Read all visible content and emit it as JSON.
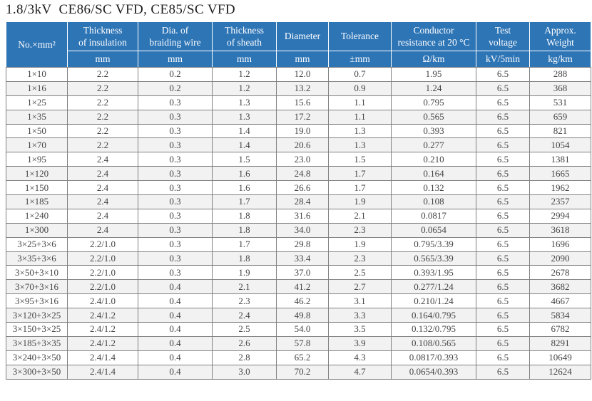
{
  "page": {
    "title": "1.8/3kV  CE86/SC VFD, CE85/SC VFD"
  },
  "colors": {
    "header_bg": "#2e75b6",
    "header_text": "#ffffff",
    "stripe_bg": "#f2f2f2",
    "border_color": "#808080",
    "text_color": "#454545"
  },
  "table": {
    "columns": [
      {
        "label": "No.×mm²",
        "unit": ""
      },
      {
        "label": "Thickness\nof insulation",
        "unit": "mm"
      },
      {
        "label": "Dia. of\nbraiding wire",
        "unit": "mm"
      },
      {
        "label": "Thickness\nof sheath",
        "unit": "mm"
      },
      {
        "label": "Diameter",
        "unit": "mm"
      },
      {
        "label": "Tolerance",
        "unit": "±mm"
      },
      {
        "label": "Conductor\nresistance at 20 °C",
        "unit": "Ω/km"
      },
      {
        "label": "Test\nvoltage",
        "unit": "kV/5min"
      },
      {
        "label": "Approx.\nWeight",
        "unit": "kg/km"
      }
    ],
    "rows": [
      [
        "1×10",
        "2.2",
        "0.2",
        "1.2",
        "12.0",
        "0.7",
        "1.95",
        "6.5",
        "288"
      ],
      [
        "1×16",
        "2.2",
        "0.2",
        "1.2",
        "13.2",
        "0.9",
        "1.24",
        "6.5",
        "368"
      ],
      [
        "1×25",
        "2.2",
        "0.3",
        "1.3",
        "15.6",
        "1.1",
        "0.795",
        "6.5",
        "531"
      ],
      [
        "1×35",
        "2.2",
        "0.3",
        "1.3",
        "17.2",
        "1.1",
        "0.565",
        "6.5",
        "659"
      ],
      [
        "1×50",
        "2.2",
        "0.3",
        "1.4",
        "19.0",
        "1.3",
        "0.393",
        "6.5",
        "821"
      ],
      [
        "1×70",
        "2.2",
        "0.3",
        "1.4",
        "20.6",
        "1.3",
        "0.277",
        "6.5",
        "1054"
      ],
      [
        "1×95",
        "2.4",
        "0.3",
        "1.5",
        "23.0",
        "1.5",
        "0.210",
        "6.5",
        "1381"
      ],
      [
        "1×120",
        "2.4",
        "0.3",
        "1.6",
        "24.8",
        "1.7",
        "0.164",
        "6.5",
        "1665"
      ],
      [
        "1×150",
        "2.4",
        "0.3",
        "1.6",
        "26.6",
        "1.7",
        "0.132",
        "6.5",
        "1962"
      ],
      [
        "1×185",
        "2.4",
        "0.3",
        "1.7",
        "28.4",
        "1.9",
        "0.108",
        "6.5",
        "2357"
      ],
      [
        "1×240",
        "2.4",
        "0.3",
        "1.8",
        "31.6",
        "2.1",
        "0.0817",
        "6.5",
        "2994"
      ],
      [
        "1×300",
        "2.4",
        "0.3",
        "1.8",
        "34.0",
        "2.3",
        "0.0654",
        "6.5",
        "3618"
      ],
      [
        "3×25+3×6",
        "2.2/1.0",
        "0.3",
        "1.7",
        "29.8",
        "1.9",
        "0.795/3.39",
        "6.5",
        "1696"
      ],
      [
        "3×35+3×6",
        "2.2/1.0",
        "0.3",
        "1.8",
        "33.4",
        "2.3",
        "0.565/3.39",
        "6.5",
        "2090"
      ],
      [
        "3×50+3×10",
        "2.2/1.0",
        "0.3",
        "1.9",
        "37.0",
        "2.5",
        "0.393/1.95",
        "6.5",
        "2678"
      ],
      [
        "3×70+3×16",
        "2.2/1.0",
        "0.4",
        "2.1",
        "41.2",
        "2.7",
        "0.277/1.24",
        "6.5",
        "3682"
      ],
      [
        "3×95+3×16",
        "2.4/1.0",
        "0.4",
        "2.3",
        "46.2",
        "3.1",
        "0.210/1.24",
        "6.5",
        "4667"
      ],
      [
        "3×120+3×25",
        "2.4/1.2",
        "0.4",
        "2.4",
        "49.8",
        "3.3",
        "0.164/0.795",
        "6.5",
        "5834"
      ],
      [
        "3×150+3×25",
        "2.4/1.2",
        "0.4",
        "2.5",
        "54.0",
        "3.5",
        "0.132/0.795",
        "6.5",
        "6782"
      ],
      [
        "3×185+3×35",
        "2.4/1.2",
        "0.4",
        "2.6",
        "57.8",
        "3.9",
        "0.108/0.565",
        "6.5",
        "8291"
      ],
      [
        "3×240+3×50",
        "2.4/1.4",
        "0.4",
        "2.8",
        "65.2",
        "4.3",
        "0.0817/0.393",
        "6.5",
        "10649"
      ],
      [
        "3×300+3×50",
        "2.4/1.4",
        "0.4",
        "3.0",
        "70.2",
        "4.7",
        "0.0654/0.393",
        "6.5",
        "12624"
      ]
    ]
  }
}
